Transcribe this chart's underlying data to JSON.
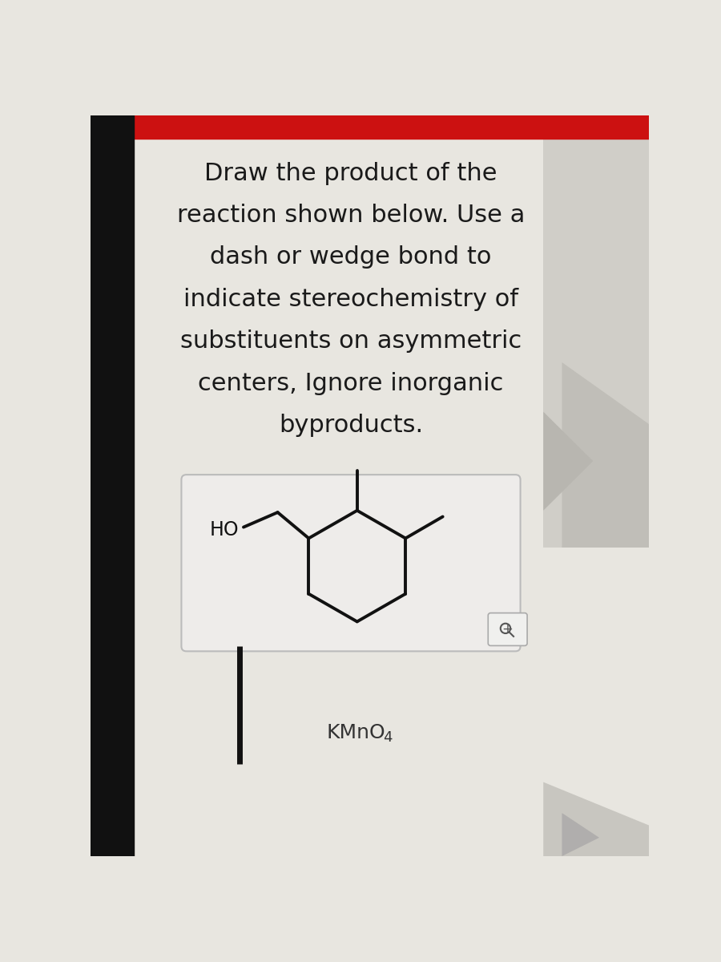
{
  "title_lines": [
    "Draw the product of the",
    "reaction shown below. Use a",
    "dash or wedge bond to",
    "indicate stereochemistry of",
    "substituents on asymmetric",
    "centers, Ignore inorganic",
    "byproducts."
  ],
  "title_fontsize": 22,
  "background_color": "#e8e6e0",
  "top_bar_color": "#cc1111",
  "text_color": "#1a1a1a",
  "box_color": "#eeecea",
  "box_edge_color": "#bbbbbb",
  "molecule_line_color": "#111111",
  "molecule_lw": 2.8,
  "kmno4_text": "KMnO",
  "kmno4_sub": "4"
}
